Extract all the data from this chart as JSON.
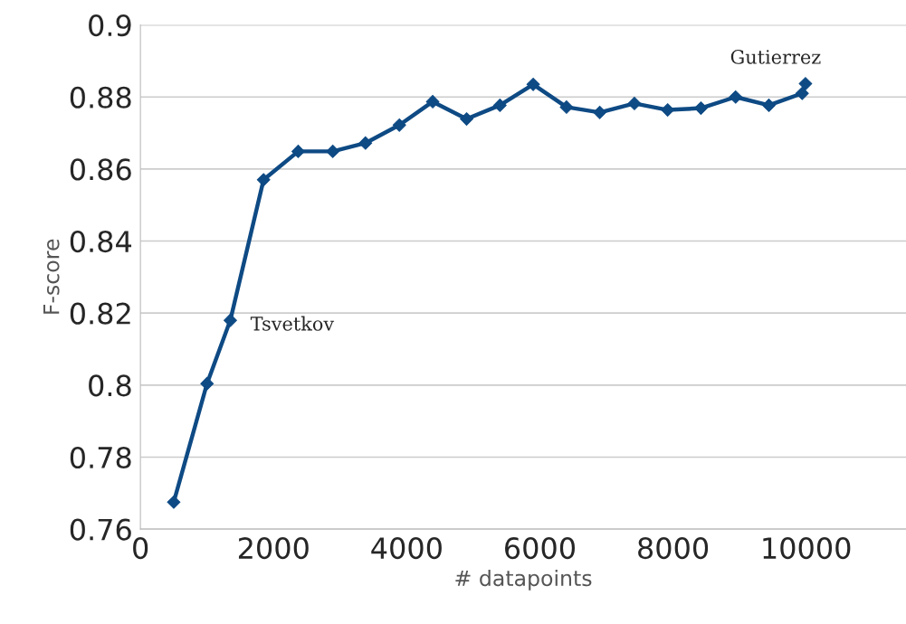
{
  "chart_data": {
    "type": "line",
    "xlabel": "# datapoints",
    "ylabel": "F-score",
    "x": [
      500,
      1000,
      1350,
      1850,
      2370,
      2890,
      3380,
      3890,
      4390,
      4900,
      5400,
      5900,
      6400,
      6900,
      7420,
      7920,
      8420,
      8940,
      9440,
      9940,
      9990
    ],
    "series": [
      {
        "color": "#0e4a84",
        "values": [
          0.7675,
          0.8004,
          0.818,
          0.857,
          0.8649,
          0.8649,
          0.8672,
          0.8722,
          0.8787,
          0.8739,
          0.8777,
          0.8835,
          0.8772,
          0.8757,
          0.8782,
          0.8764,
          0.8769,
          0.88,
          0.8777,
          0.881,
          0.8837
        ]
      }
    ],
    "xlim": [
      0,
      11500
    ],
    "xticks": [
      0,
      2000,
      4000,
      6000,
      8000,
      10000
    ],
    "ylim": [
      0.76,
      0.9
    ],
    "yticks": [
      0.76,
      0.78,
      0.8,
      0.82,
      0.84,
      0.86,
      0.88,
      0.9
    ],
    "grid": "y",
    "marker": "diamond",
    "line_style": "solid",
    "annotations": [
      {
        "text": "Tsvetkov",
        "x": 1350,
        "y": 0.818
      },
      {
        "text": "Gutierrez",
        "x": 9990,
        "y": 0.8837
      }
    ]
  }
}
